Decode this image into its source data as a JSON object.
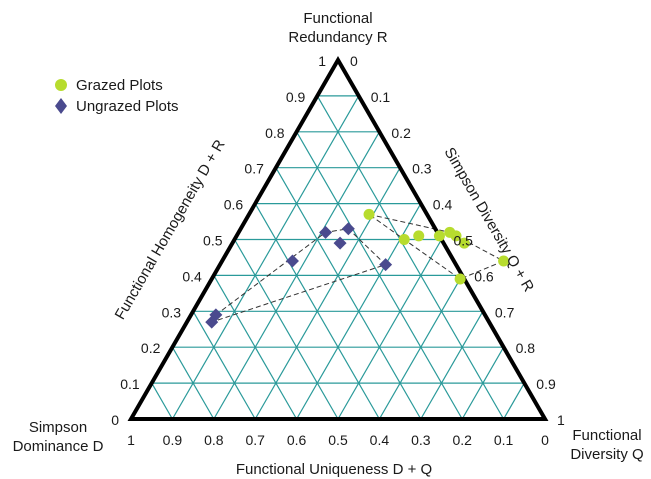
{
  "chart_data": {
    "type": "scatter",
    "subtype": "ternary",
    "colors": {
      "grid": "#2a9a9a",
      "frame": "#000000",
      "grazed": "#b7dc2e",
      "ungrazed": "#4a4a8e",
      "hull": "#333333"
    },
    "vertices": {
      "top": [
        "Functional",
        "Redundancy R"
      ],
      "left": [
        "Simpson",
        "Dominance D"
      ],
      "right": [
        "Functional",
        "Diversity Q"
      ]
    },
    "axes": {
      "left_edge": {
        "label": "Functional Homogeneity D + R",
        "ticks": [
          "1",
          "0.9",
          "0.8",
          "0.7",
          "0.6",
          "0.5",
          "0.4",
          "0.3",
          "0.2",
          "0.1",
          "0"
        ]
      },
      "right_edge": {
        "label": "Simpson Diversity Q + R",
        "ticks": [
          "0",
          "0.1",
          "0.2",
          "0.3",
          "0.4",
          "0.5",
          "0.6",
          "0.7",
          "0.8",
          "0.9",
          "1"
        ]
      },
      "bottom_edge": {
        "label": "Functional Uniqueness D + Q",
        "ticks": [
          "1",
          "0.9",
          "0.8",
          "0.7",
          "0.6",
          "0.5",
          "0.4",
          "0.3",
          "0.2",
          "0.1",
          "0"
        ]
      }
    },
    "legend": {
      "placement": "top-left",
      "entries": [
        "Grazed Plots",
        "Ungrazed Plots"
      ]
    },
    "series": [
      {
        "name": "Grazed Plots",
        "marker": "circle",
        "points": [
          {
            "D": 0.14,
            "R": 0.57,
            "Q": 0.29
          },
          {
            "D": 0.09,
            "R": 0.5,
            "Q": 0.41
          },
          {
            "D": 0.05,
            "R": 0.51,
            "Q": 0.44
          },
          {
            "D": 0.0,
            "R": 0.51,
            "Q": 0.49
          },
          {
            "D": -0.03,
            "R": 0.52,
            "Q": 0.51
          },
          {
            "D": -0.04,
            "R": 0.51,
            "Q": 0.53
          },
          {
            "D": -0.05,
            "R": 0.49,
            "Q": 0.56
          },
          {
            "D": -0.12,
            "R": 0.44,
            "Q": 0.68
          },
          {
            "D": 0.01,
            "R": 0.39,
            "Q": 0.6
          }
        ]
      },
      {
        "name": "Ungrazed Plots",
        "marker": "diamond",
        "points": [
          {
            "D": 0.27,
            "R": 0.52,
            "Q": 0.21
          },
          {
            "D": 0.21,
            "R": 0.53,
            "Q": 0.26
          },
          {
            "D": 0.25,
            "R": 0.49,
            "Q": 0.26
          },
          {
            "D": 0.17,
            "R": 0.43,
            "Q": 0.4
          },
          {
            "D": 0.39,
            "R": 0.44,
            "Q": 0.17
          },
          {
            "D": 0.65,
            "R": 0.29,
            "Q": 0.06
          },
          {
            "D": 0.67,
            "R": 0.27,
            "Q": 0.06
          }
        ]
      }
    ]
  }
}
